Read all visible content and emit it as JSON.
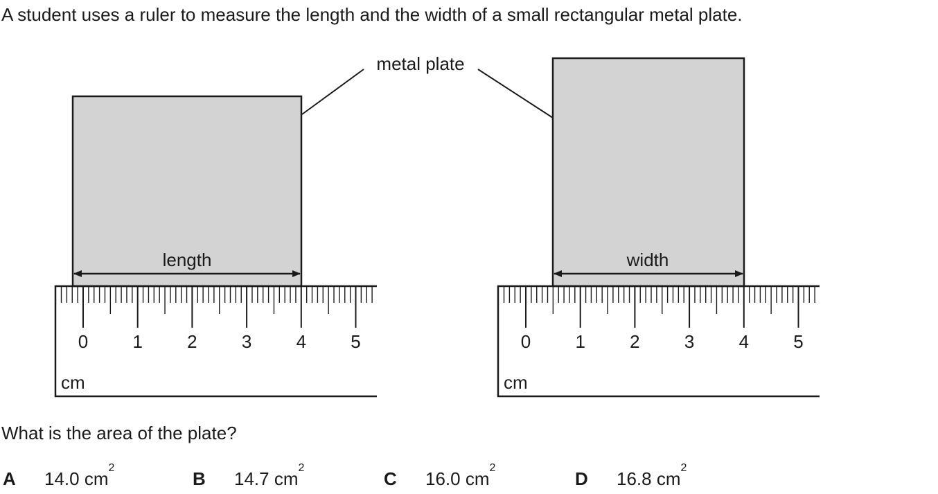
{
  "intro_text": "A student uses a ruler to measure the length and the width of a small rectangular metal plate.",
  "question_text": "What is the area of the plate?",
  "diagram": {
    "plate_label": "metal plate",
    "length_label": "length",
    "width_label": "width",
    "unit_label": "cm",
    "ruler_numbers": [
      "0",
      "1",
      "2",
      "3",
      "4",
      "5"
    ],
    "length_reading": {
      "start_cm": 0.0,
      "end_cm": 4.0
    },
    "width_reading": {
      "start_cm": 0.5,
      "end_cm": 4.0
    },
    "plate_fill": "#d3d3d3",
    "line_color": "#1a1a1a"
  },
  "options": [
    {
      "letter": "A",
      "value": "14.0 cm",
      "exponent": "2"
    },
    {
      "letter": "B",
      "value": "14.7 cm",
      "exponent": "2"
    },
    {
      "letter": "C",
      "value": "16.0 cm",
      "exponent": "2"
    },
    {
      "letter": "D",
      "value": "16.8 cm",
      "exponent": "2"
    }
  ]
}
